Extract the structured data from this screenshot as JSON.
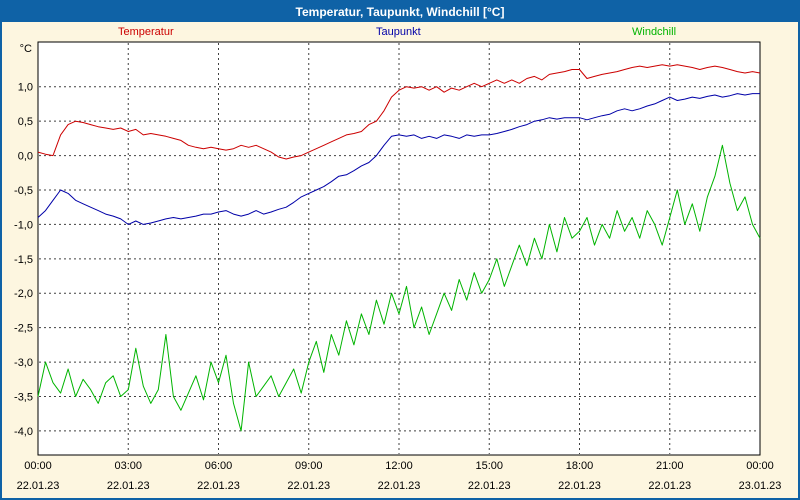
{
  "window": {
    "title": "Temperatur, Taupunkt, Windchill [°C]"
  },
  "colors": {
    "titlebar_bg": "#0f62a6",
    "titlebar_text": "#ffffff",
    "background": "#fdf6e0",
    "plot_bg": "#ffffff",
    "grid": "#404040",
    "border": "#000000",
    "temperatur": "#cc0000",
    "taupunkt": "#0000a8",
    "windchill": "#00b400"
  },
  "legend": [
    {
      "label": "Temperatur",
      "color": "#cc0000"
    },
    {
      "label": "Taupunkt",
      "color": "#0000a8"
    },
    {
      "label": "Windchill",
      "color": "#00b400"
    }
  ],
  "chart_data": {
    "type": "line",
    "title": "Temperatur, Taupunkt, Windchill [°C]",
    "y_unit": "°C",
    "grid": true,
    "legend_position": "top",
    "ylim": [
      -4.35,
      1.65
    ],
    "xlim_hours": [
      0,
      24
    ],
    "x_interval_hours": 0.25,
    "y_ticks": [
      {
        "value": 1.0,
        "label": "1,0"
      },
      {
        "value": 0.5,
        "label": "0,5"
      },
      {
        "value": 0.0,
        "label": "0,0"
      },
      {
        "value": -0.5,
        "label": "-0,5"
      },
      {
        "value": -1.0,
        "label": "-1,0"
      },
      {
        "value": -1.5,
        "label": "-1,5"
      },
      {
        "value": -2.0,
        "label": "-2,0"
      },
      {
        "value": -2.5,
        "label": "-2,5"
      },
      {
        "value": -3.0,
        "label": "-3,0"
      },
      {
        "value": -3.5,
        "label": "-3,5"
      },
      {
        "value": -4.0,
        "label": "-4,0"
      }
    ],
    "x_ticks": [
      {
        "hour": 0,
        "time": "00:00",
        "date": "22.01.23"
      },
      {
        "hour": 3,
        "time": "03:00",
        "date": "22.01.23"
      },
      {
        "hour": 6,
        "time": "06:00",
        "date": "22.01.23"
      },
      {
        "hour": 9,
        "time": "09:00",
        "date": "22.01.23"
      },
      {
        "hour": 12,
        "time": "12:00",
        "date": "22.01.23"
      },
      {
        "hour": 15,
        "time": "15:00",
        "date": "22.01.23"
      },
      {
        "hour": 18,
        "time": "18:00",
        "date": "22.01.23"
      },
      {
        "hour": 21,
        "time": "21:00",
        "date": "22.01.23"
      },
      {
        "hour": 24,
        "time": "00:00",
        "date": "23.01.23"
      }
    ],
    "series": [
      {
        "name": "Temperatur",
        "color": "#cc0000",
        "values": [
          0.05,
          0.02,
          0.0,
          0.3,
          0.45,
          0.5,
          0.48,
          0.45,
          0.42,
          0.4,
          0.38,
          0.4,
          0.35,
          0.38,
          0.3,
          0.32,
          0.3,
          0.28,
          0.25,
          0.22,
          0.15,
          0.12,
          0.1,
          0.12,
          0.1,
          0.08,
          0.1,
          0.15,
          0.12,
          0.15,
          0.1,
          0.05,
          -0.02,
          -0.05,
          -0.02,
          0.0,
          0.05,
          0.1,
          0.15,
          0.2,
          0.25,
          0.3,
          0.32,
          0.35,
          0.45,
          0.5,
          0.65,
          0.85,
          0.95,
          1.0,
          0.98,
          1.0,
          0.95,
          1.0,
          0.92,
          0.98,
          0.95,
          1.0,
          1.05,
          1.0,
          1.05,
          1.1,
          1.05,
          1.1,
          1.05,
          1.12,
          1.15,
          1.1,
          1.18,
          1.2,
          1.22,
          1.25,
          1.25,
          1.12,
          1.15,
          1.18,
          1.2,
          1.22,
          1.25,
          1.28,
          1.3,
          1.28,
          1.3,
          1.32,
          1.3,
          1.32,
          1.3,
          1.28,
          1.25,
          1.28,
          1.3,
          1.28,
          1.25,
          1.22,
          1.2,
          1.22,
          1.2
        ]
      },
      {
        "name": "Taupunkt",
        "color": "#0000a8",
        "values": [
          -0.9,
          -0.8,
          -0.65,
          -0.5,
          -0.55,
          -0.65,
          -0.7,
          -0.75,
          -0.8,
          -0.85,
          -0.88,
          -0.92,
          -1.0,
          -0.95,
          -1.0,
          -0.98,
          -0.95,
          -0.92,
          -0.9,
          -0.92,
          -0.9,
          -0.88,
          -0.85,
          -0.85,
          -0.82,
          -0.8,
          -0.85,
          -0.88,
          -0.85,
          -0.8,
          -0.85,
          -0.82,
          -0.78,
          -0.75,
          -0.68,
          -0.6,
          -0.55,
          -0.5,
          -0.45,
          -0.38,
          -0.3,
          -0.28,
          -0.22,
          -0.15,
          -0.1,
          0.0,
          0.15,
          0.28,
          0.3,
          0.28,
          0.3,
          0.25,
          0.28,
          0.25,
          0.3,
          0.28,
          0.25,
          0.3,
          0.28,
          0.3,
          0.3,
          0.32,
          0.35,
          0.38,
          0.42,
          0.45,
          0.5,
          0.52,
          0.55,
          0.53,
          0.55,
          0.55,
          0.55,
          0.52,
          0.55,
          0.58,
          0.6,
          0.65,
          0.68,
          0.65,
          0.68,
          0.72,
          0.75,
          0.8,
          0.85,
          0.8,
          0.82,
          0.85,
          0.83,
          0.86,
          0.88,
          0.85,
          0.87,
          0.9,
          0.88,
          0.9,
          0.9
        ]
      },
      {
        "name": "Windchill",
        "color": "#00b400",
        "values": [
          -3.5,
          -3.0,
          -3.3,
          -3.45,
          -3.1,
          -3.5,
          -3.25,
          -3.4,
          -3.6,
          -3.3,
          -3.2,
          -3.5,
          -3.4,
          -2.8,
          -3.35,
          -3.6,
          -3.4,
          -2.6,
          -3.5,
          -3.7,
          -3.45,
          -3.2,
          -3.55,
          -3.0,
          -3.3,
          -2.9,
          -3.6,
          -4.0,
          -3.0,
          -3.5,
          -3.35,
          -3.2,
          -3.5,
          -3.3,
          -3.1,
          -3.45,
          -3.0,
          -2.7,
          -3.15,
          -2.6,
          -2.9,
          -2.4,
          -2.75,
          -2.3,
          -2.6,
          -2.1,
          -2.45,
          -2.0,
          -2.3,
          -1.9,
          -2.5,
          -2.2,
          -2.6,
          -2.3,
          -2.0,
          -2.25,
          -1.8,
          -2.1,
          -1.7,
          -2.0,
          -1.8,
          -1.5,
          -1.9,
          -1.6,
          -1.3,
          -1.6,
          -1.2,
          -1.5,
          -1.0,
          -1.4,
          -0.9,
          -1.2,
          -1.1,
          -0.9,
          -1.3,
          -1.0,
          -1.2,
          -0.8,
          -1.1,
          -0.9,
          -1.2,
          -0.8,
          -1.0,
          -1.3,
          -0.9,
          -0.5,
          -1.0,
          -0.7,
          -1.1,
          -0.6,
          -0.3,
          0.15,
          -0.4,
          -0.8,
          -0.6,
          -1.0,
          -1.2
        ]
      }
    ]
  }
}
